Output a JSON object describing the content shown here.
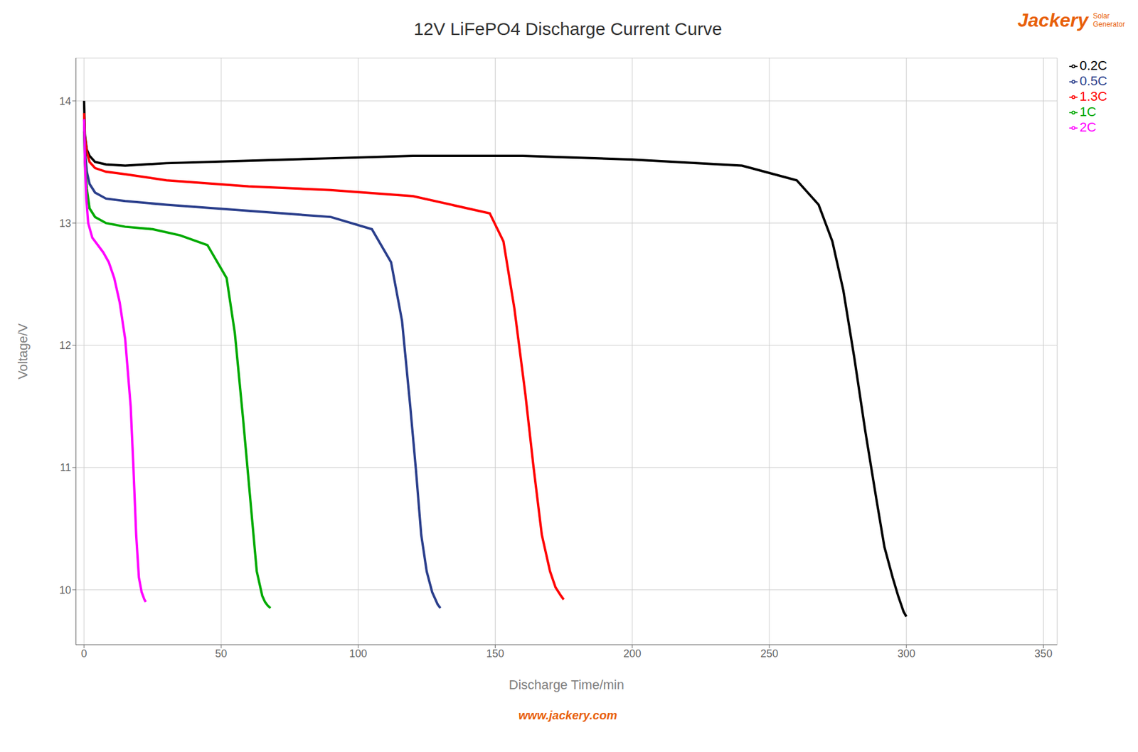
{
  "chart_data": {
    "type": "line",
    "title": "12V LiFePO4 Discharge Current Curve",
    "x_label": "Discharge Time/min",
    "y_label": "Voltage/V",
    "xlim": [
      -3,
      355
    ],
    "ylim": [
      9.55,
      14.35
    ],
    "xticks": [
      0,
      50,
      100,
      150,
      200,
      250,
      300,
      350
    ],
    "yticks": [
      10,
      11,
      12,
      13,
      14
    ],
    "grid": true,
    "legend": "upper right",
    "annotations": [
      {
        "text": "www.jackery.com",
        "color": "#E8600A"
      },
      {
        "text": "Jackery",
        "color": "#E8600A"
      },
      {
        "text": "Solar\nGenerator",
        "color": "#E8600A"
      }
    ],
    "series": [
      {
        "name": "0.2C",
        "color": "#000000",
        "x": [
          0,
          0.3,
          1,
          2,
          4,
          8,
          15,
          30,
          60,
          90,
          120,
          160,
          200,
          240,
          260,
          268,
          273,
          277,
          281,
          285,
          289,
          292,
          295,
          297,
          299,
          300
        ],
        "values": [
          14.0,
          13.72,
          13.6,
          13.55,
          13.5,
          13.48,
          13.47,
          13.49,
          13.51,
          13.53,
          13.55,
          13.55,
          13.52,
          13.47,
          13.35,
          13.15,
          12.85,
          12.45,
          11.9,
          11.3,
          10.75,
          10.35,
          10.1,
          9.95,
          9.82,
          9.78
        ]
      },
      {
        "name": "1.3C",
        "color": "#FF0000",
        "x": [
          0,
          0.3,
          1,
          2,
          4,
          8,
          15,
          30,
          60,
          90,
          120,
          140,
          148,
          153,
          157,
          161,
          164,
          167,
          170,
          172,
          174,
          175
        ],
        "values": [
          13.9,
          13.7,
          13.58,
          13.5,
          13.45,
          13.42,
          13.4,
          13.35,
          13.3,
          13.27,
          13.22,
          13.12,
          13.08,
          12.85,
          12.3,
          11.6,
          11.0,
          10.45,
          10.15,
          10.02,
          9.95,
          9.92
        ]
      },
      {
        "name": "0.5C",
        "color": "#2B3F8C",
        "x": [
          0,
          0.3,
          1,
          2,
          4,
          8,
          15,
          30,
          60,
          90,
          105,
          112,
          116,
          119,
          121,
          123,
          125,
          127,
          129,
          130
        ],
        "values": [
          13.85,
          13.6,
          13.42,
          13.32,
          13.25,
          13.2,
          13.18,
          13.15,
          13.1,
          13.05,
          12.95,
          12.68,
          12.2,
          11.5,
          11.0,
          10.45,
          10.15,
          9.98,
          9.88,
          9.85
        ]
      },
      {
        "name": "1C",
        "color": "#00AA00",
        "x": [
          0,
          0.3,
          1,
          2,
          4,
          8,
          15,
          25,
          35,
          45,
          52,
          55,
          58,
          61,
          63,
          65,
          66,
          67,
          68
        ],
        "values": [
          13.75,
          13.5,
          13.28,
          13.12,
          13.05,
          13.0,
          12.97,
          12.95,
          12.9,
          12.82,
          12.55,
          12.1,
          11.4,
          10.65,
          10.15,
          9.95,
          9.9,
          9.87,
          9.85
        ]
      },
      {
        "name": "2C",
        "color": "#FF00FF",
        "x": [
          0,
          0.3,
          0.8,
          1.5,
          3,
          5,
          7,
          9,
          11,
          13,
          15,
          17,
          18,
          19,
          20,
          21,
          22,
          22.5
        ],
        "values": [
          13.85,
          13.5,
          13.2,
          13.0,
          12.88,
          12.82,
          12.76,
          12.68,
          12.55,
          12.35,
          12.05,
          11.5,
          11.0,
          10.45,
          10.1,
          9.98,
          9.92,
          9.9
        ]
      }
    ]
  }
}
